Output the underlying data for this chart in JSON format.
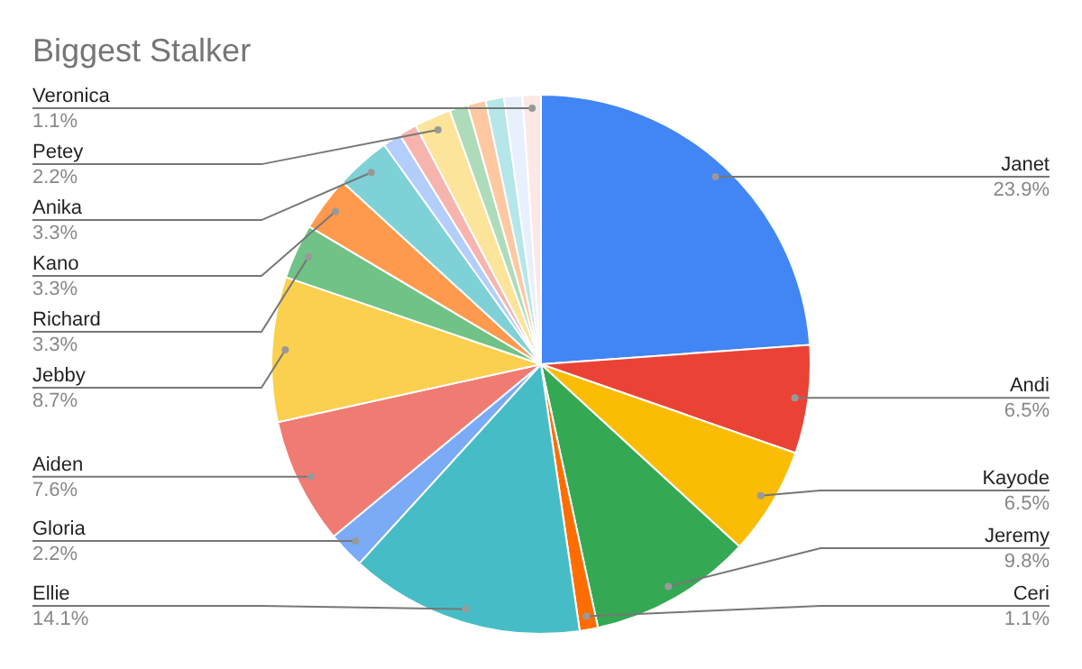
{
  "chart_data": {
    "type": "pie",
    "title": "Biggest Stalker",
    "categories": [
      "Janet",
      "Andi",
      "Kayode",
      "Jeremy",
      "Ceri",
      "Ellie",
      "Gloria",
      "Aiden",
      "Jebby",
      "Richard",
      "Kano",
      "Anika",
      null,
      null,
      "Petey",
      null,
      null,
      null,
      null,
      "Veronica"
    ],
    "values": [
      23.9,
      6.5,
      6.5,
      9.8,
      1.1,
      14.1,
      2.2,
      7.6,
      8.7,
      3.3,
      3.3,
      3.3,
      1.1,
      1.1,
      2.2,
      1.1,
      1.1,
      1.1,
      1.1,
      1.1
    ],
    "value_labels": [
      "23.9%",
      "6.5%",
      "6.5%",
      "9.8%",
      "1.1%",
      "14.1%",
      "2.2%",
      "7.6%",
      "8.7%",
      "3.3%",
      "3.3%",
      "3.3%",
      null,
      null,
      "2.2%",
      null,
      null,
      null,
      null,
      "1.1%"
    ],
    "colors": [
      "#4285f4",
      "#ea4335",
      "#fbbc04",
      "#34a853",
      "#ff6d01",
      "#46bdc6",
      "#7baaf7",
      "#f07b72",
      "#fcd04f",
      "#71c287",
      "#ff994d",
      "#7ed1d7",
      "#b3cefb",
      "#f7b4ae",
      "#fde49b",
      "#aedcba",
      "#ffc8a1",
      "#b5e6e9",
      "#e8f0fe",
      "#fde8e6"
    ],
    "legend": false
  }
}
